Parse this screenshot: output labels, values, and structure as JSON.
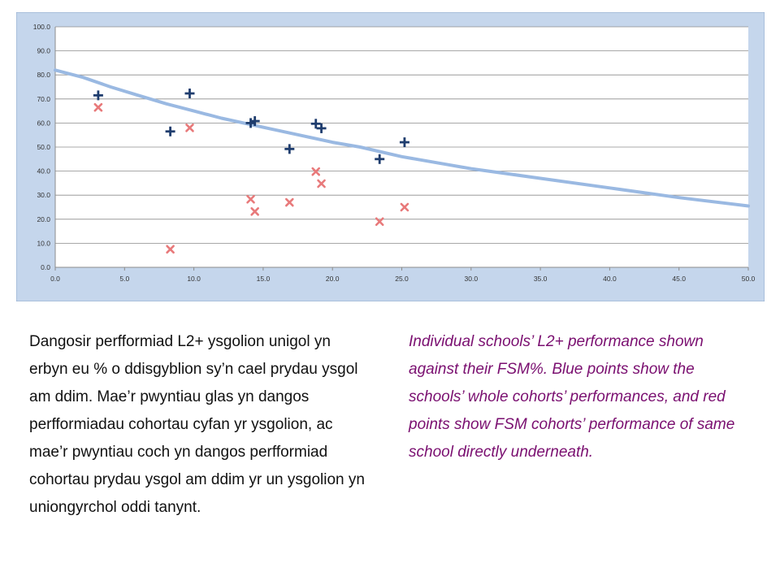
{
  "text": {
    "welsh_paragraph": "Dangosir perfformiad L2+ ysgolion unigol yn erbyn eu % o ddisgyblion sy’n cael prydau ysgol am ddim. Mae’r pwyntiau glas yn dangos perfformiadau cohortau cyfan yr ysgolion, ac mae’r pwyntiau coch yn dangos perfformiad cohortau prydau ysgol am ddim yr un ysgolion yn uniongyrchol oddi tanynt.",
    "english_paragraph": "Individual schools’ L2+ performance shown against their FSM%. Blue points show the schools’ whole cohorts’ performances, and red points show FSM cohorts’ performance of same school directly underneath."
  },
  "chart_data": {
    "type": "scatter",
    "title": "",
    "xlabel": "",
    "ylabel": "",
    "xlim": [
      0,
      50
    ],
    "ylim": [
      0,
      100
    ],
    "x_ticks": [
      "0.0",
      "5.0",
      "10.0",
      "15.0",
      "20.0",
      "25.0",
      "30.0",
      "35.0",
      "40.0",
      "45.0",
      "50.0"
    ],
    "y_ticks": [
      "0.0",
      "10.0",
      "20.0",
      "30.0",
      "40.0",
      "50.0",
      "60.0",
      "70.0",
      "80.0",
      "90.0",
      "100.0"
    ],
    "grid": true,
    "legend": "none",
    "series": [
      {
        "marker": "plus",
        "color": "#1f3d6e",
        "points": [
          {
            "x": 3.1,
            "y": 71.5
          },
          {
            "x": 8.3,
            "y": 56.5
          },
          {
            "x": 9.7,
            "y": 72.3
          },
          {
            "x": 14.1,
            "y": 60.0
          },
          {
            "x": 14.4,
            "y": 60.8
          },
          {
            "x": 16.9,
            "y": 49.2
          },
          {
            "x": 18.8,
            "y": 59.7
          },
          {
            "x": 19.2,
            "y": 57.8
          },
          {
            "x": 23.4,
            "y": 45.0
          },
          {
            "x": 25.2,
            "y": 52.0
          }
        ]
      },
      {
        "marker": "cross",
        "color": "#e8797a",
        "points": [
          {
            "x": 3.1,
            "y": 66.5
          },
          {
            "x": 8.3,
            "y": 7.5
          },
          {
            "x": 9.7,
            "y": 58.0
          },
          {
            "x": 14.1,
            "y": 28.3
          },
          {
            "x": 14.4,
            "y": 23.2
          },
          {
            "x": 16.9,
            "y": 27.0
          },
          {
            "x": 18.8,
            "y": 39.8
          },
          {
            "x": 19.2,
            "y": 34.8
          },
          {
            "x": 23.4,
            "y": 19.0
          },
          {
            "x": 25.2,
            "y": 25.0
          }
        ]
      },
      {
        "marker": "line",
        "color": "#9ab9e2",
        "points": [
          {
            "x": 0,
            "y": 82
          },
          {
            "x": 2,
            "y": 79
          },
          {
            "x": 4,
            "y": 75
          },
          {
            "x": 6,
            "y": 71.5
          },
          {
            "x": 8,
            "y": 68
          },
          {
            "x": 10,
            "y": 65
          },
          {
            "x": 12,
            "y": 62
          },
          {
            "x": 14,
            "y": 59.5
          },
          {
            "x": 16,
            "y": 57
          },
          {
            "x": 18,
            "y": 54.5
          },
          {
            "x": 20,
            "y": 52
          },
          {
            "x": 22,
            "y": 50
          },
          {
            "x": 25,
            "y": 46
          },
          {
            "x": 28,
            "y": 43
          },
          {
            "x": 30,
            "y": 41
          },
          {
            "x": 35,
            "y": 37
          },
          {
            "x": 40,
            "y": 33
          },
          {
            "x": 45,
            "y": 29
          },
          {
            "x": 50,
            "y": 25.5
          }
        ]
      }
    ]
  }
}
